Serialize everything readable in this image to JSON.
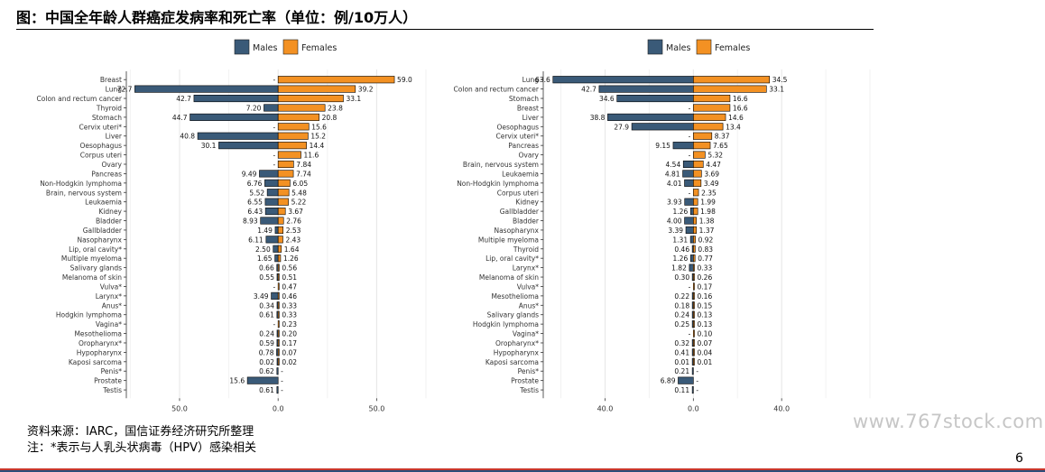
{
  "page": {
    "title": "图：中国全年龄人群癌症发病率和死亡率（单位：例/10万人）",
    "source_note": "资料来源：IARC，国信证券经济研究所整理",
    "footnote": "注：*表示与人乳头状病毒（HPV）感染相关",
    "watermark": "www.767stock.com",
    "page_number": "6"
  },
  "colors": {
    "males": "#3a5a78",
    "females": "#f39123",
    "grid": "#e6e6e6",
    "bar_edge": "#000000"
  },
  "chart_data": [
    {
      "type": "bar",
      "orientation": "horizontal",
      "diverging": true,
      "title": "",
      "legend_position": "top-center",
      "grid": true,
      "xlim": [
        -77,
        75
      ],
      "x_ticks": [
        -50,
        0,
        50
      ],
      "x_tick_labels": [
        "50.0",
        "0.0",
        "50.0"
      ],
      "categories": [
        "Breast",
        "Lung",
        "Colon and rectum cancer",
        "Thyroid",
        "Stomach",
        "Cervix uteri*",
        "Liver",
        "Oesophagus",
        "Corpus uteri",
        "Ovary",
        "Pancreas",
        "Non-Hodgkin lymphoma",
        "Brain, nervous system",
        "Leukaemia",
        "Kidney",
        "Bladder",
        "Gallbladder",
        "Nasopharynx",
        "Lip, oral cavity*",
        "Multiple myeloma",
        "Salivary glands",
        "Melanoma of skin",
        "Vulva*",
        "Larynx*",
        "Anus*",
        "Hodgkin lymphoma",
        "Vagina*",
        "Mesothelioma",
        "Oropharynx*",
        "Hypopharynx",
        "Kaposi sarcoma",
        "Penis*",
        "Prostate",
        "Testis"
      ],
      "series": [
        {
          "name": "Males",
          "values": [
            null,
            72.7,
            42.7,
            7.2,
            44.7,
            null,
            40.8,
            30.1,
            null,
            null,
            9.49,
            6.76,
            5.52,
            6.55,
            6.43,
            8.93,
            1.49,
            6.11,
            2.5,
            1.65,
            0.66,
            0.55,
            null,
            3.49,
            0.34,
            0.61,
            null,
            0.24,
            0.59,
            0.78,
            0.02,
            0.62,
            15.6,
            0.61
          ],
          "labels": [
            "-",
            "72.7",
            "42.7",
            "7.20",
            "44.7",
            "-",
            "40.8",
            "30.1",
            "-",
            "-",
            "9.49",
            "6.76",
            "5.52",
            "6.55",
            "6.43",
            "8.93",
            "1.49",
            "6.11",
            "2.50",
            "1.65",
            "0.66",
            "0.55",
            "-",
            "3.49",
            "0.34",
            "0.61",
            "-",
            "0.24",
            "0.59",
            "0.78",
            "0.02",
            "0.62",
            "15.6",
            "0.61"
          ]
        },
        {
          "name": "Females",
          "values": [
            59.0,
            39.2,
            33.1,
            23.8,
            20.8,
            15.6,
            15.2,
            14.4,
            11.6,
            7.84,
            7.74,
            6.05,
            5.48,
            5.22,
            3.67,
            2.76,
            2.53,
            2.43,
            1.64,
            1.26,
            0.56,
            0.51,
            0.47,
            0.46,
            0.33,
            0.33,
            0.23,
            0.2,
            0.17,
            0.07,
            0.02,
            null,
            null,
            null
          ],
          "labels": [
            "59.0",
            "39.2",
            "33.1",
            "23.8",
            "20.8",
            "15.6",
            "15.2",
            "14.4",
            "11.6",
            "7.84",
            "7.74",
            "6.05",
            "5.48",
            "5.22",
            "3.67",
            "2.76",
            "2.53",
            "2.43",
            "1.64",
            "1.26",
            "0.56",
            "0.51",
            "0.47",
            "0.46",
            "0.33",
            "0.33",
            "0.23",
            "0.20",
            "0.17",
            "0.07",
            "0.02",
            "-",
            "-",
            "-"
          ]
        }
      ]
    },
    {
      "type": "bar",
      "orientation": "horizontal",
      "diverging": true,
      "title": "",
      "legend_position": "top-center",
      "grid": true,
      "xlim": [
        -68,
        80
      ],
      "x_ticks": [
        -40,
        0,
        40
      ],
      "x_tick_labels": [
        "40.0",
        "0.0",
        "40.0"
      ],
      "categories": [
        "Lung",
        "Colon and rectum cancer",
        "Stomach",
        "Breast",
        "Liver",
        "Oesophagus",
        "Cervix uteri*",
        "Pancreas",
        "Ovary",
        "Brain, nervous system",
        "Leukaemia",
        "Non-Hodgkin lymphoma",
        "Corpus uteri",
        "Kidney",
        "Gallbladder",
        "Bladder",
        "Nasopharynx",
        "Multiple myeloma",
        "Thyroid",
        "Lip, oral cavity*",
        "Larynx*",
        "Melanoma of skin",
        "Vulva*",
        "Mesothelioma",
        "Anus*",
        "Salivary glands",
        "Hodgkin lymphoma",
        "Vagina*",
        "Oropharynx*",
        "Hypopharynx",
        "Kaposi sarcoma",
        "Penis*",
        "Prostate",
        "Testis"
      ],
      "series": [
        {
          "name": "Males",
          "values": [
            63.6,
            42.7,
            34.6,
            null,
            38.8,
            27.9,
            null,
            9.15,
            null,
            4.54,
            4.81,
            4.01,
            null,
            3.93,
            1.26,
            4.0,
            3.39,
            1.31,
            0.46,
            1.26,
            1.82,
            0.3,
            null,
            0.22,
            0.18,
            0.24,
            0.25,
            null,
            0.32,
            0.41,
            0.01,
            0.21,
            6.89,
            0.11
          ],
          "labels": [
            "63.6",
            "42.7",
            "34.6",
            "-",
            "38.8",
            "27.9",
            "-",
            "9.15",
            "-",
            "4.54",
            "4.81",
            "4.01",
            "-",
            "3.93",
            "1.26",
            "4.00",
            "3.39",
            "1.31",
            "0.46",
            "1.26",
            "1.82",
            "0.30",
            "-",
            "0.22",
            "0.18",
            "0.24",
            "0.25",
            "-",
            "0.32",
            "0.41",
            "0.01",
            "0.21",
            "6.89",
            "0.11"
          ]
        },
        {
          "name": "Females",
          "values": [
            34.5,
            33.1,
            16.6,
            16.6,
            14.6,
            13.4,
            8.37,
            7.65,
            5.32,
            4.47,
            3.69,
            3.49,
            2.35,
            1.99,
            1.98,
            1.38,
            1.37,
            0.92,
            0.83,
            0.77,
            0.33,
            0.26,
            0.17,
            0.16,
            0.15,
            0.13,
            0.13,
            0.1,
            0.07,
            0.04,
            0.01,
            null,
            null,
            null
          ],
          "labels": [
            "34.5",
            "33.1",
            "16.6",
            "16.6",
            "14.6",
            "13.4",
            "8.37",
            "7.65",
            "5.32",
            "4.47",
            "3.69",
            "3.49",
            "2.35",
            "1.99",
            "1.98",
            "1.38",
            "1.37",
            "0.92",
            "0.83",
            "0.77",
            "0.33",
            "0.26",
            "0.17",
            "0.16",
            "0.15",
            "0.13",
            "0.13",
            "0.10",
            "0.07",
            "0.04",
            "0.01",
            "-",
            "-",
            "-"
          ]
        }
      ]
    }
  ]
}
